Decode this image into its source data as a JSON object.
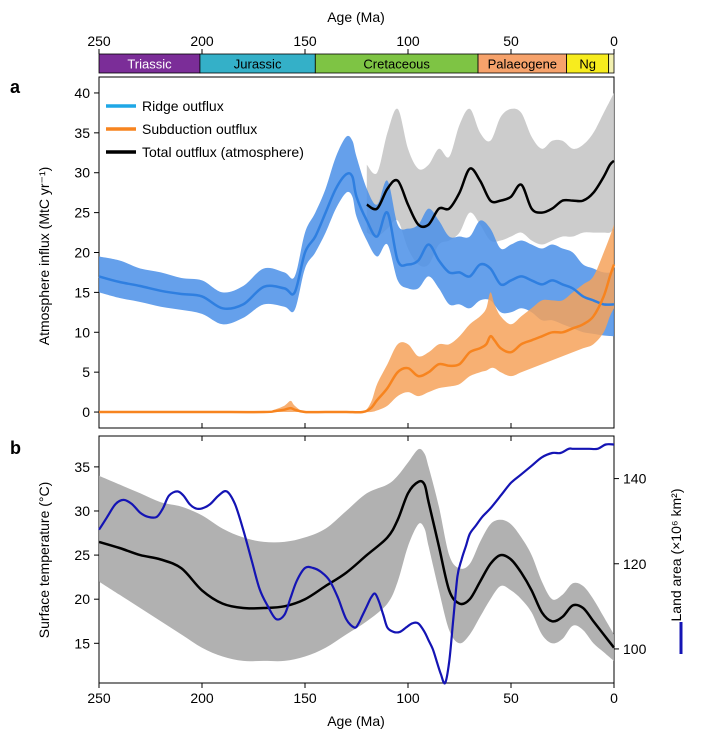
{
  "figure": {
    "top_axis_title": "Age (Ma)",
    "bottom_axis_title": "Age (Ma)",
    "panel_a_label": "a",
    "panel_b_label": "b"
  },
  "periods": [
    {
      "name": "Triassic",
      "start": 252,
      "end": 201,
      "color": "#7b2d98",
      "text": "#ffffff"
    },
    {
      "name": "Jurassic",
      "start": 201,
      "end": 145,
      "color": "#34b0c8",
      "text": "#000000"
    },
    {
      "name": "Cretaceous",
      "start": 145,
      "end": 66,
      "color": "#7ec444",
      "text": "#000000"
    },
    {
      "name": "Palaeogene",
      "start": 66,
      "end": 23,
      "color": "#f6a26b",
      "text": "#000000"
    },
    {
      "name": "Ng",
      "start": 23,
      "end": 2.6,
      "color": "#f7ec1e",
      "text": "#000000"
    },
    {
      "name": "",
      "start": 2.6,
      "end": 0,
      "color": "#f2f0b0",
      "text": "#000000"
    }
  ],
  "colors": {
    "ridge": "#1ea7e6",
    "ridge_line": "#2f7fe0",
    "ridge_band": "#4a8fe8",
    "subduction": "#f7841f",
    "subduction_band": "#f6a25a",
    "total_band": "#c7c7c7",
    "total": "#000000",
    "temp_band": "#a9a9a9",
    "land": "#1414b4"
  },
  "chart_data": [
    {
      "type": "line",
      "title": "",
      "xlabel": "Age (Ma)",
      "ylabel": "Atmosphere influx (MtC yr⁻¹)",
      "xlim": [
        250,
        0
      ],
      "ylim": [
        -2,
        42
      ],
      "xticks": [
        250,
        200,
        150,
        100,
        50,
        0
      ],
      "yticks": [
        0,
        5,
        10,
        15,
        20,
        25,
        30,
        35,
        40
      ],
      "legend": {
        "position": "top-left",
        "entries": [
          "Ridge outflux",
          "Subduction outflux",
          "Total outflux (atmosphere)"
        ]
      },
      "series": [
        {
          "name": "Ridge outflux",
          "key": "ridge",
          "x": [
            250,
            240,
            230,
            220,
            210,
            200,
            190,
            180,
            170,
            160,
            155,
            150,
            145,
            140,
            135,
            130,
            127,
            125,
            120,
            115,
            110,
            105,
            100,
            95,
            90,
            85,
            80,
            75,
            70,
            65,
            60,
            55,
            50,
            45,
            40,
            35,
            30,
            25,
            20,
            15,
            10,
            5,
            0
          ],
          "y": [
            17,
            16.3,
            15.8,
            15.2,
            14.8,
            14.5,
            13,
            13.5,
            15.7,
            15.5,
            15,
            20,
            22,
            25,
            28,
            29.8,
            29.5,
            27,
            24,
            22,
            25,
            19,
            18.5,
            19,
            21,
            19,
            17.5,
            17.5,
            17,
            18.5,
            18,
            16,
            16.5,
            17,
            16.5,
            16,
            16.5,
            16,
            15.5,
            14.5,
            14,
            13.5,
            13.5
          ],
          "lower": [
            15,
            14.3,
            13.8,
            13.2,
            12.8,
            12.3,
            11,
            11.8,
            13.5,
            13.2,
            12.8,
            18,
            20,
            22.5,
            25.5,
            27.5,
            27,
            24.5,
            21.5,
            19.5,
            21,
            16.5,
            15.5,
            15.5,
            17,
            15.5,
            13.5,
            13.5,
            13,
            14,
            14,
            12.5,
            12.5,
            13,
            12.5,
            11.5,
            11.5,
            11,
            10.5,
            10,
            9.8,
            9.6,
            9.5
          ],
          "upper": [
            19.5,
            19,
            18,
            17.5,
            16.8,
            16.5,
            15,
            15.8,
            18,
            17.5,
            17,
            22.5,
            25,
            28,
            32,
            34.5,
            34,
            32,
            28,
            26,
            29,
            23.5,
            23,
            23.5,
            25.5,
            24,
            22,
            22,
            22,
            24,
            23,
            20.5,
            21,
            21.5,
            21,
            20.5,
            21,
            20.5,
            20,
            18.5,
            18,
            17.5,
            17.5
          ]
        },
        {
          "name": "Subduction outflux",
          "key": "subduction",
          "x": [
            250,
            200,
            170,
            165,
            160,
            157,
            155,
            150,
            140,
            130,
            122,
            118,
            115,
            110,
            105,
            100,
            95,
            90,
            85,
            80,
            75,
            70,
            65,
            62,
            60,
            58,
            55,
            50,
            45,
            40,
            35,
            30,
            25,
            20,
            15,
            10,
            5,
            2,
            0
          ],
          "y": [
            0,
            0,
            0,
            0.1,
            0.3,
            0.5,
            0.3,
            0,
            0,
            0,
            0,
            0.5,
            1.5,
            3,
            5,
            5.5,
            4.5,
            5,
            6,
            5.8,
            6,
            7.5,
            8,
            8.5,
            9.5,
            9,
            8,
            7.5,
            8.5,
            9,
            9.5,
            10,
            10,
            10.5,
            11,
            12,
            14.5,
            17,
            18.5
          ],
          "lower": [
            0,
            0,
            0,
            0,
            0,
            0,
            0,
            0,
            0,
            0,
            0,
            0,
            0.2,
            0.8,
            2,
            2.5,
            2,
            2.5,
            3,
            3.2,
            3.5,
            4.5,
            5,
            5.2,
            5.5,
            5.5,
            5,
            4.5,
            5,
            5.5,
            6,
            6.5,
            7,
            7.5,
            8,
            8.5,
            10,
            12,
            13
          ],
          "upper": [
            0,
            0,
            0,
            0.3,
            0.8,
            1.4,
            0.8,
            0,
            0,
            0,
            0,
            1.2,
            3.5,
            6,
            8.5,
            8.5,
            7,
            7.5,
            8.5,
            8.5,
            9.5,
            11,
            12,
            13,
            15,
            13.5,
            12,
            11,
            12,
            13,
            14,
            14,
            14,
            15,
            16,
            17,
            20,
            22,
            23.5
          ]
        },
        {
          "name": "Total outflux (atmosphere)",
          "key": "total",
          "x": [
            120,
            115,
            110,
            105,
            100,
            95,
            90,
            85,
            80,
            75,
            70,
            65,
            60,
            55,
            50,
            45,
            40,
            35,
            30,
            25,
            20,
            15,
            10,
            5,
            2,
            0
          ],
          "y": [
            26,
            25.5,
            28,
            29,
            26,
            23.5,
            23.5,
            25.5,
            25.5,
            27.5,
            30.5,
            29,
            26.5,
            26.5,
            27,
            28.5,
            25.5,
            25,
            25.5,
            26.5,
            26.5,
            26.5,
            27.5,
            29.5,
            31,
            31.5
          ],
          "lower": [
            22.5,
            22,
            23,
            24,
            20.5,
            18.5,
            18.5,
            21,
            21.5,
            22.5,
            25,
            23.5,
            21.5,
            21.5,
            22,
            22.5,
            21.5,
            21,
            21.5,
            22,
            22,
            22.5,
            22.5,
            22.5,
            22.5,
            23
          ],
          "upper": [
            31,
            30,
            35,
            38,
            33,
            30.5,
            31,
            33,
            32,
            36,
            38,
            35,
            34,
            37,
            38,
            37.5,
            34.5,
            33,
            34,
            34,
            33,
            33.5,
            35,
            37.5,
            39,
            40
          ]
        }
      ]
    },
    {
      "type": "line",
      "title": "",
      "xlabel": "Age (Ma)",
      "ylabel": "Surface temperature (°C)",
      "y2label": "Land area (×10⁶ km²)",
      "xlim": [
        250,
        0
      ],
      "ylim": [
        10.5,
        38.5
      ],
      "y2lim": [
        92,
        150
      ],
      "xticks": [
        250,
        200,
        150,
        100,
        50,
        0
      ],
      "yticks": [
        15,
        20,
        25,
        30,
        35
      ],
      "y2ticks": [
        100,
        120,
        140
      ],
      "series": [
        {
          "name": "Surface temperature",
          "key": "temperature",
          "axis": "left",
          "x": [
            250,
            240,
            230,
            220,
            210,
            200,
            190,
            180,
            170,
            160,
            150,
            140,
            130,
            120,
            110,
            105,
            100,
            95,
            92,
            90,
            85,
            80,
            75,
            70,
            65,
            60,
            55,
            50,
            45,
            40,
            35,
            30,
            25,
            20,
            15,
            10,
            5,
            0
          ],
          "y": [
            26.5,
            25.8,
            25,
            24.5,
            23.5,
            21,
            19.5,
            19,
            19,
            19.2,
            20,
            21.5,
            23,
            25,
            27,
            29,
            32,
            33.3,
            33,
            31,
            26,
            21,
            19.5,
            20,
            22,
            24,
            25,
            24.5,
            23,
            21,
            18.5,
            17.5,
            18,
            19.3,
            19,
            17.5,
            16,
            14.5
          ],
          "lower": [
            22,
            20.5,
            19,
            17.5,
            16,
            14.5,
            13.5,
            13,
            13,
            13,
            13.5,
            14.5,
            16,
            17.5,
            19.5,
            22,
            26,
            28.5,
            28,
            26,
            21,
            16.5,
            15,
            16,
            18,
            20,
            21.5,
            21,
            20,
            18.5,
            16,
            15,
            15.5,
            17,
            16.5,
            15,
            14,
            13
          ],
          "upper": [
            34,
            33,
            32,
            31,
            30.5,
            29.5,
            28,
            27,
            26.5,
            26.5,
            27,
            28,
            30,
            32,
            33,
            34,
            35.5,
            37,
            36.5,
            35,
            30.5,
            25,
            23.5,
            24,
            26.5,
            28.5,
            29,
            28.5,
            27,
            25,
            22,
            20,
            20.5,
            21.8,
            21.5,
            20,
            18,
            16
          ]
        },
        {
          "name": "Land area",
          "key": "land",
          "axis": "right",
          "x": [
            250,
            246,
            242,
            238,
            234,
            230,
            226,
            222,
            219,
            216,
            212,
            209,
            206,
            203,
            200,
            196,
            192,
            188,
            184,
            180,
            176,
            172,
            168,
            164,
            160,
            157,
            154,
            150,
            146,
            142,
            138,
            134,
            130,
            126,
            124,
            122,
            120,
            118,
            116,
            114,
            112,
            110,
            107,
            104,
            101,
            98,
            95,
            92,
            90,
            88,
            86,
            84,
            82,
            80,
            78,
            76,
            74,
            72,
            70,
            67,
            64,
            60,
            55,
            50,
            45,
            40,
            35,
            30,
            26,
            22,
            20,
            18,
            15,
            12,
            8,
            4,
            0
          ],
          "y": [
            128,
            131,
            134,
            135,
            134,
            132,
            131,
            131,
            133,
            136,
            137,
            136,
            134,
            133,
            133,
            134,
            136,
            137,
            134,
            128,
            121,
            114,
            110,
            107,
            108,
            112,
            116,
            119,
            119,
            118,
            116,
            112,
            107,
            105,
            106,
            108,
            110,
            112,
            113,
            111,
            108,
            105,
            104,
            104,
            105,
            106,
            106,
            104,
            102,
            100,
            97,
            94,
            92,
            97,
            107,
            117,
            121,
            124,
            127,
            129,
            131,
            133,
            136,
            139,
            141,
            143,
            145,
            146,
            146,
            147,
            147,
            147,
            147,
            147,
            147,
            148,
            148
          ]
        }
      ]
    }
  ]
}
